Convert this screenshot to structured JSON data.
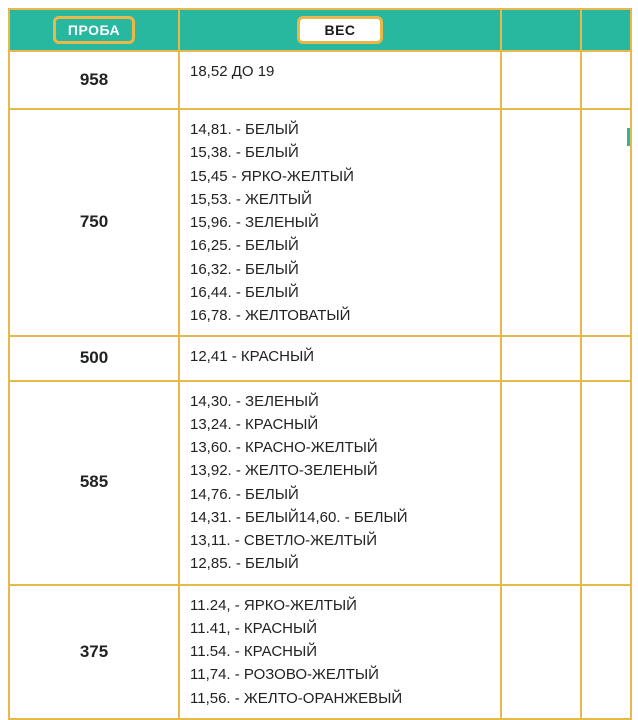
{
  "colors": {
    "header_bg": "#28b8a0",
    "border": "#e8b84a",
    "text": "#222222",
    "white": "#ffffff"
  },
  "columns": {
    "proba": "ПРОБА",
    "ves": "ВЕС"
  },
  "rows": [
    {
      "proba": "958",
      "lines": [
        "18,52 ДО 19"
      ],
      "min_height": 58
    },
    {
      "proba": "750",
      "lines": [
        "14,81. - БЕЛЫЙ",
        "15,38. - БЕЛЫЙ",
        "15,45 - ЯРКО-ЖЕЛТЫЙ",
        "15,53. - ЖЕЛТЫЙ",
        "15,96. - ЗЕЛЕНЫЙ",
        "16,25. - БЕЛЫЙ",
        "16,32. - БЕЛЫЙ",
        "16,44. - БЕЛЫЙ",
        "16,78. - ЖЕЛТОВАТЫЙ"
      ]
    },
    {
      "proba": "500",
      "lines": [
        "12,41 - КРАСНЫЙ"
      ],
      "min_height": 44
    },
    {
      "proba": "585",
      "lines": [
        "14,30. - ЗЕЛЕНЫЙ",
        "13,24. - КРАСНЫЙ",
        "13,60. - КРАСНО-ЖЕЛТЫЙ",
        "13,92. - ЖЕЛТО-ЗЕЛЕНЫЙ",
        "14,76. - БЕЛЫЙ",
        "14,31. - БЕЛЫЙ14,60. - БЕЛЫЙ",
        "13,11. - СВЕТЛО-ЖЕЛТЫЙ",
        "12,85. - БЕЛЫЙ"
      ]
    },
    {
      "proba": "375",
      "lines": [
        "11.24, - ЯРКО-ЖЕЛТЫЙ",
        "11.41, - КРАСНЫЙ",
        "11.54. - КРАСНЫЙ",
        "11,74. - РОЗОВО-ЖЕЛТЫЙ",
        "11,56. - ЖЕЛТО-ОРАНЖЕВЫЙ"
      ]
    }
  ]
}
